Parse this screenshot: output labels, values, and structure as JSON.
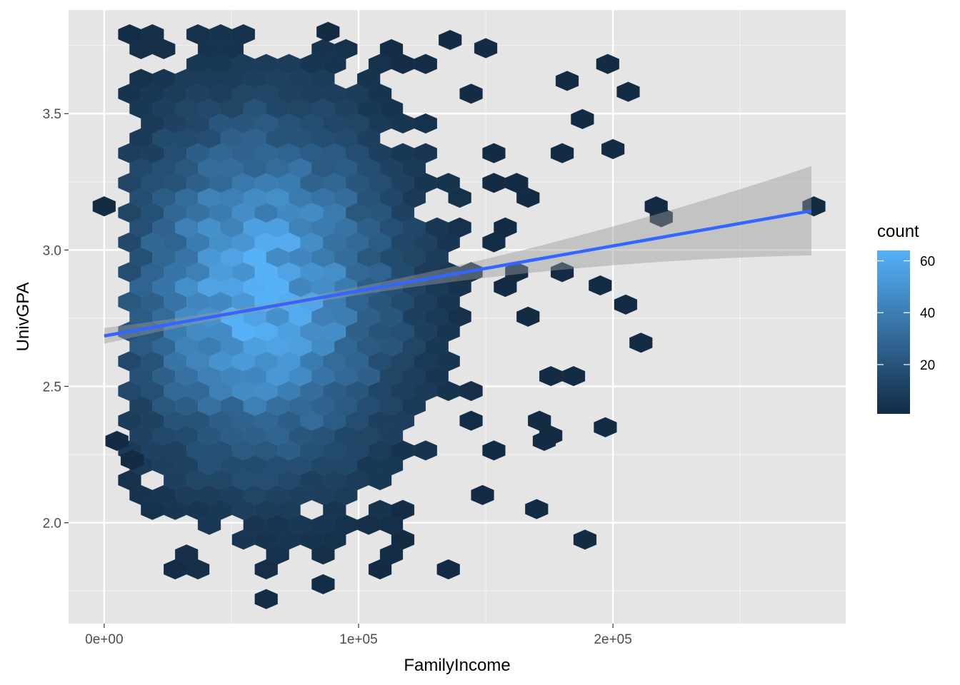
{
  "chart_data": {
    "type": "hexbin",
    "xlabel": "FamilyIncome",
    "ylabel": "UnivGPA",
    "x_ticks": [
      "0e+00",
      "1e+05",
      "2e+05"
    ],
    "x_tick_values": [
      0,
      100000,
      200000
    ],
    "y_ticks": [
      "2.0",
      "2.5",
      "3.0",
      "3.5"
    ],
    "y_tick_values": [
      2.0,
      2.5,
      3.0,
      3.5
    ],
    "xlim": [
      -14000,
      291500
    ],
    "ylim": [
      1.63,
      3.88
    ],
    "grid": true,
    "background_color": "#e5e5e5",
    "legend": {
      "title": "count",
      "placement": "right",
      "labels": [
        "20",
        "40",
        "60"
      ],
      "label_values": [
        20,
        40,
        60
      ],
      "range": [
        1,
        64
      ],
      "low_color": "#132b43",
      "high_color": "#56b1f7"
    },
    "density": {
      "center_income": 62000,
      "center_gpa": 2.85,
      "income_spread": 35000,
      "gpa_spread": 0.42,
      "peak_count": 64
    },
    "outlier_bins": [
      {
        "x": 0,
        "y": 3.16
      },
      {
        "x": 5000,
        "y": 2.3
      },
      {
        "x": 11000,
        "y": 2.23
      },
      {
        "x": 200000,
        "y": 3.37
      },
      {
        "x": 205000,
        "y": 2.8
      },
      {
        "x": 206000,
        "y": 3.58
      },
      {
        "x": 211000,
        "y": 2.66
      },
      {
        "x": 217000,
        "y": 3.16
      },
      {
        "x": 219000,
        "y": 3.12
      },
      {
        "x": 197000,
        "y": 2.35
      },
      {
        "x": 195000,
        "y": 2.87
      },
      {
        "x": 188000,
        "y": 3.48
      },
      {
        "x": 182000,
        "y": 3.62
      },
      {
        "x": 170000,
        "y": 2.05
      },
      {
        "x": 173000,
        "y": 2.3
      },
      {
        "x": 279000,
        "y": 3.16
      },
      {
        "x": 150000,
        "y": 3.74
      },
      {
        "x": 136000,
        "y": 3.77
      },
      {
        "x": 88000,
        "y": 3.8
      }
    ],
    "smooth": {
      "method": "lm",
      "color": "#3366ff",
      "x_range": [
        0,
        278000
      ],
      "intercept": 2.685,
      "slope": 1.65e-06,
      "ci_color": "#999999"
    }
  }
}
